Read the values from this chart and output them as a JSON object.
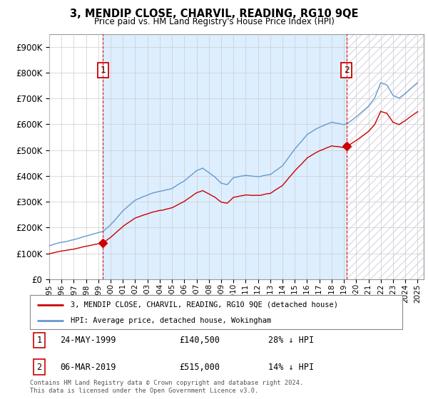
{
  "title": "3, MENDIP CLOSE, CHARVIL, READING, RG10 9QE",
  "subtitle": "Price paid vs. HM Land Registry's House Price Index (HPI)",
  "legend_line1": "3, MENDIP CLOSE, CHARVIL, READING, RG10 9QE (detached house)",
  "legend_line2": "HPI: Average price, detached house, Wokingham",
  "transaction1_date": "24-MAY-1999",
  "transaction1_price": "£140,500",
  "transaction1_hpi": "28% ↓ HPI",
  "transaction2_date": "06-MAR-2019",
  "transaction2_price": "£515,000",
  "transaction2_hpi": "14% ↓ HPI",
  "footer": "Contains HM Land Registry data © Crown copyright and database right 2024.\nThis data is licensed under the Open Government Licence v3.0.",
  "price_color": "#cc0000",
  "hpi_color": "#6699cc",
  "dashed_line_color": "#cc0000",
  "shade_color": "#ddeeff",
  "yticks": [
    0,
    100000,
    200000,
    300000,
    400000,
    500000,
    600000,
    700000,
    800000,
    900000
  ],
  "x_start_year": 1995,
  "x_end_year": 2025
}
